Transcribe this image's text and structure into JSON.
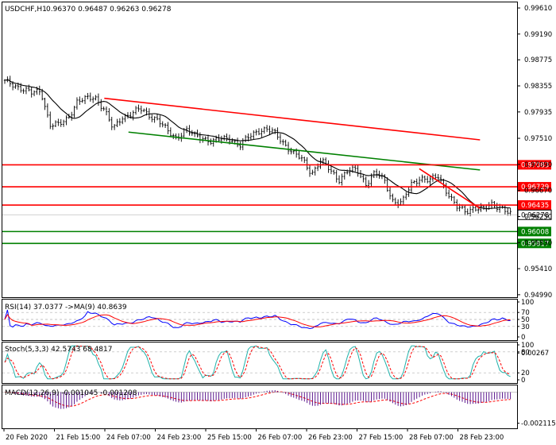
{
  "header": {
    "symbol": "USDCHF,H1",
    "ohlc": "0.96370 0.96487 0.96263 0.96278"
  },
  "colors": {
    "red": "#ff0000",
    "green": "#008000",
    "up": "#000000",
    "price_tag": "#ffffff",
    "rsi": "#0000ff",
    "ma": "#ff0000",
    "stoch_main": "#20b2aa",
    "stoch_signal": "#ff0000",
    "macd_hist": "#4b0082",
    "macd_signal": "#ff0000"
  },
  "chart_data": {
    "type": "candlestick",
    "symbol": "USDCHF",
    "timeframe": "H1",
    "y_ticks": [
      "0.99610",
      "0.99190",
      "0.98775",
      "0.98355",
      "0.97935",
      "0.97510",
      "0.97090",
      "0.96670",
      "0.96250",
      "0.95830",
      "0.95410",
      "0.94990"
    ],
    "ylim": [
      0.9495,
      0.997
    ],
    "current_price": "0.96278",
    "x_ticks": [
      "20 Feb 2020",
      "21 Feb 15:00",
      "24 Feb 07:00",
      "24 Feb 23:00",
      "25 Feb 15:00",
      "26 Feb 07:00",
      "26 Feb 23:00",
      "27 Feb 15:00",
      "28 Feb 07:00",
      "28 Feb 23:00"
    ],
    "price_path": [
      0.9842,
      0.9837,
      0.9831,
      0.9823,
      0.9828,
      0.9773,
      0.9772,
      0.9784,
      0.981,
      0.9814,
      0.9818,
      0.9798,
      0.9765,
      0.9786,
      0.979,
      0.9798,
      0.9789,
      0.978,
      0.9762,
      0.9752,
      0.9765,
      0.9755,
      0.9752,
      0.9745,
      0.975,
      0.9752,
      0.9738,
      0.9753,
      0.9764,
      0.9765,
      0.9758,
      0.9742,
      0.9726,
      0.9716,
      0.9695,
      0.9715,
      0.97,
      0.9685,
      0.9698,
      0.97,
      0.9678,
      0.9695,
      0.9684,
      0.965,
      0.9646,
      0.9677,
      0.9688,
      0.9682,
      0.969,
      0.9665,
      0.964,
      0.9633,
      0.964,
      0.9636,
      0.9645,
      0.964,
      0.9628
    ],
    "horizontal_levels": [
      {
        "label": "0.97083",
        "value": 0.97083,
        "color": "#ff0000"
      },
      {
        "label": "0.96729",
        "value": 0.96729,
        "color": "#ff0000"
      },
      {
        "label": "0.96435",
        "value": 0.96435,
        "color": "#ff0000"
      },
      {
        "label": "0.96008",
        "value": 0.96008,
        "color": "#008000"
      },
      {
        "label": "0.95817",
        "value": 0.95817,
        "color": "#008000"
      }
    ],
    "trend_lines": [
      {
        "color": "#ff0000",
        "from": [
          0.198,
          0.98155
        ],
        "to": [
          0.928,
          0.97485
        ]
      },
      {
        "color": "#008000",
        "from": [
          0.245,
          0.9761
        ],
        "to": [
          0.928,
          0.97
        ]
      },
      {
        "color": "#ff0000",
        "from": [
          0.81,
          0.9702
        ],
        "to": [
          0.928,
          0.9638
        ]
      }
    ],
    "indicators": {
      "rsi": {
        "label": "RSI(14) 37.0377   ->MA(9) 40.8639",
        "ticks": [
          "100",
          "70",
          "50",
          "30",
          "0"
        ],
        "levels": [
          70,
          50,
          30
        ],
        "ylim": [
          0,
          100
        ]
      },
      "stoch": {
        "label": "Stoch(5,3,3) 42.5743 68.4817",
        "ticks": [
          "100",
          "80",
          "20",
          "0"
        ],
        "levels": [
          80,
          20
        ],
        "ylim": [
          0,
          100
        ]
      },
      "macd": {
        "label": "MACD(12,26,9) -0.001045 -0.001208",
        "ticks": [
          "0.00267",
          "-0.002115"
        ],
        "ylim": [
          -0.0023,
          0.0003
        ]
      }
    }
  }
}
